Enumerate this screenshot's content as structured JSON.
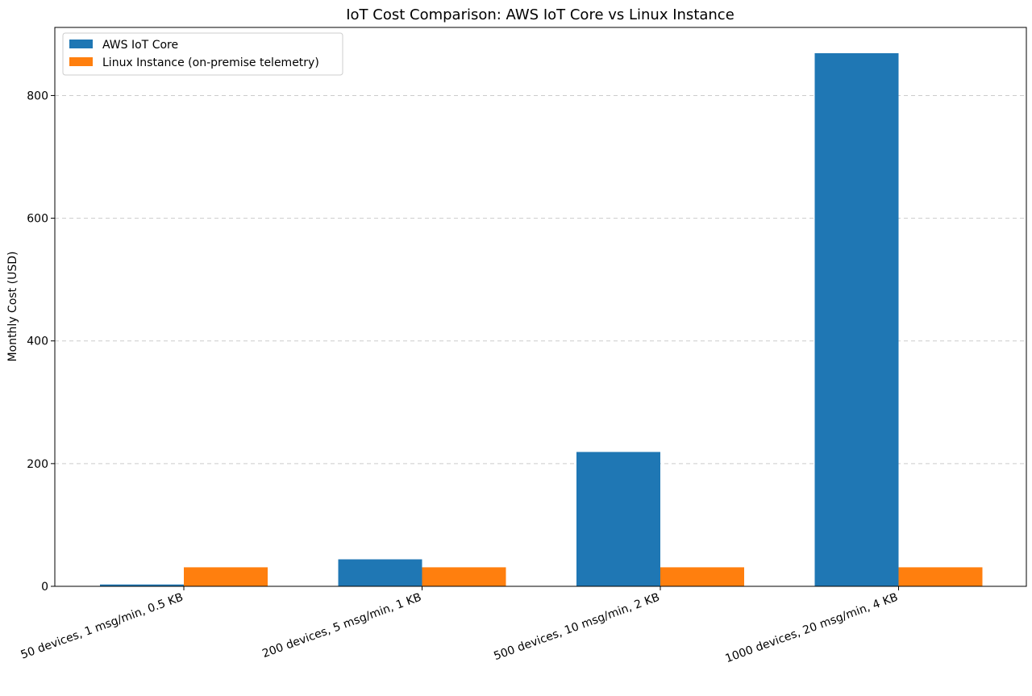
{
  "chart_data": {
    "type": "bar",
    "title": "IoT Cost Comparison: AWS IoT Core vs Linux Instance",
    "xlabel": "",
    "ylabel": "Monthly Cost (USD)",
    "ylim": [
      0,
      911
    ],
    "yticks": [
      0,
      200,
      400,
      600,
      800
    ],
    "grid": "y-dashed",
    "legend_position": "top-left",
    "categories": [
      "50 devices, 1 msg/min, 0.5 KB",
      "200 devices, 5 msg/min, 1 KB",
      "500 devices, 10 msg/min, 2 KB",
      "1000 devices, 20 msg/min, 4 KB"
    ],
    "series": [
      {
        "name": "AWS IoT Core",
        "color": "#1f77b4",
        "values": [
          3,
          44,
          219,
          869
        ]
      },
      {
        "name": "Linux Instance (on-premise telemetry)",
        "color": "#ff7f0e",
        "values": [
          31,
          31,
          31,
          31
        ]
      }
    ]
  }
}
